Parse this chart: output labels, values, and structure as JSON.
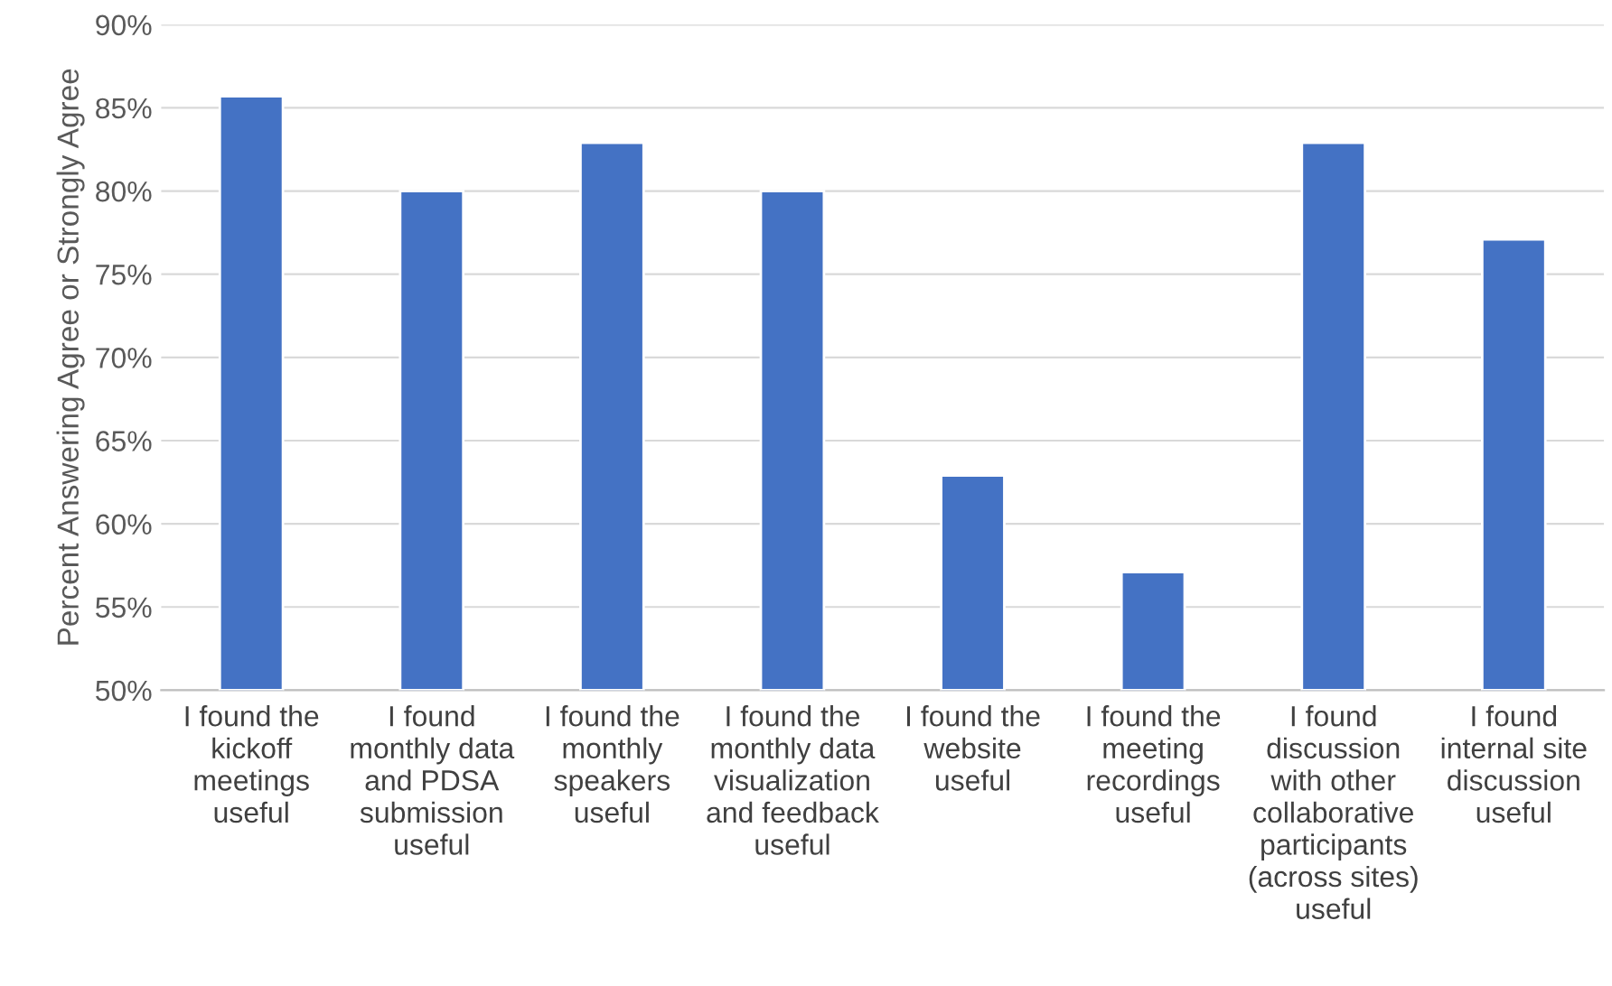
{
  "chart_data": {
    "type": "bar",
    "ylabel": "Percent Answering Agree or Strongly Agree",
    "categories": [
      "I found the\nkickoff\nmeetings\nuseful",
      "I found\nmonthly data\nand PDSA\nsubmission\nuseful",
      "I found the\nmonthly\nspeakers\nuseful",
      "I found the\nmonthly data\nvisualization\nand feedback\nuseful",
      "I found the\nwebsite\nuseful",
      "I found the\nmeeting\nrecordings\nuseful",
      "I found\ndiscussion\nwith other\ncollaborative\nparticipants\n(across sites)\nuseful",
      "I found\ninternal site\ndiscussion\nuseful"
    ],
    "values": [
      85.7,
      80.0,
      82.9,
      80.0,
      62.9,
      57.1,
      82.9,
      77.1
    ],
    "color": "#4472c4",
    "ylim": [
      50,
      90
    ],
    "yticks": [
      {
        "value": 50,
        "label": "50%"
      },
      {
        "value": 55,
        "label": "55%"
      },
      {
        "value": 60,
        "label": "60%"
      },
      {
        "value": 65,
        "label": "65%"
      },
      {
        "value": 70,
        "label": "70%"
      },
      {
        "value": 75,
        "label": "75%"
      },
      {
        "value": 80,
        "label": "80%"
      },
      {
        "value": 85,
        "label": "85%"
      },
      {
        "value": 90,
        "label": "90%"
      }
    ],
    "grid": "y",
    "legend": false
  }
}
